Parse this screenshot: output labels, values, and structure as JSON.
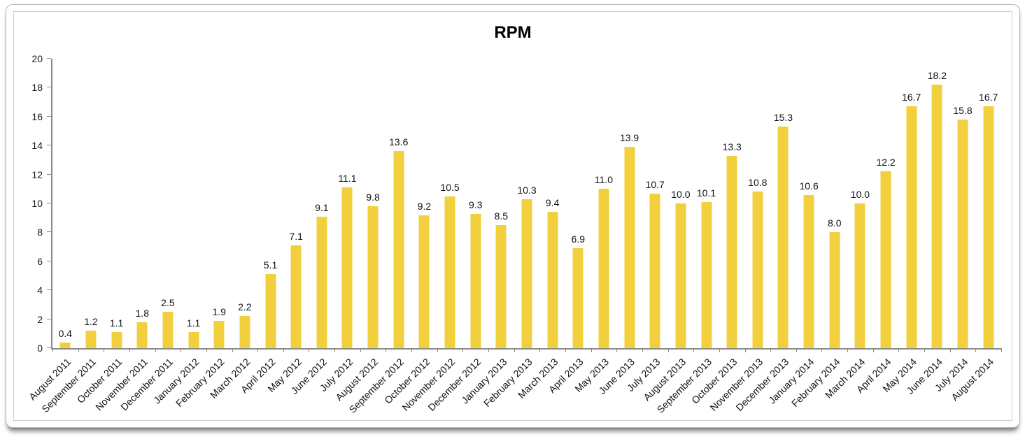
{
  "chart_data": {
    "type": "bar",
    "title": "RPM",
    "categories": [
      "August 2011",
      "September 2011",
      "October 2011",
      "November 2011",
      "December 2011",
      "January 2012",
      "February 2012",
      "March 2012",
      "April 2012",
      "May 2012",
      "June 2012",
      "July 2012",
      "August 2012",
      "September 2012",
      "October 2012",
      "November 2012",
      "December 2012",
      "January 2013",
      "February 2013",
      "March 2013",
      "April 2013",
      "May 2013",
      "June 2013",
      "July 2013",
      "August 2013",
      "September 2013",
      "October 2013",
      "November 2013",
      "December 2013",
      "January 2014",
      "February 2014",
      "March 2014",
      "April 2014",
      "May 2014",
      "June 2014",
      "July 2014",
      "August 2014"
    ],
    "values": [
      0.4,
      1.2,
      1.1,
      1.8,
      2.5,
      1.1,
      1.9,
      2.2,
      5.1,
      7.1,
      9.1,
      11.1,
      9.8,
      13.6,
      9.2,
      10.5,
      9.3,
      8.5,
      10.3,
      9.4,
      6.9,
      11.0,
      13.9,
      10.7,
      10.0,
      10.1,
      13.3,
      10.8,
      15.3,
      10.6,
      8.0,
      10.0,
      12.2,
      16.7,
      18.2,
      15.8,
      16.7
    ],
    "xlabel": "",
    "ylabel": "",
    "ylim": [
      0,
      20
    ],
    "ytick_step": 2,
    "grid": false,
    "legend_position": "none",
    "value_label_decimals": 1,
    "bar_color": "#F2D03D",
    "axis_color": "#8a8a8a",
    "text_color": "#111111"
  }
}
